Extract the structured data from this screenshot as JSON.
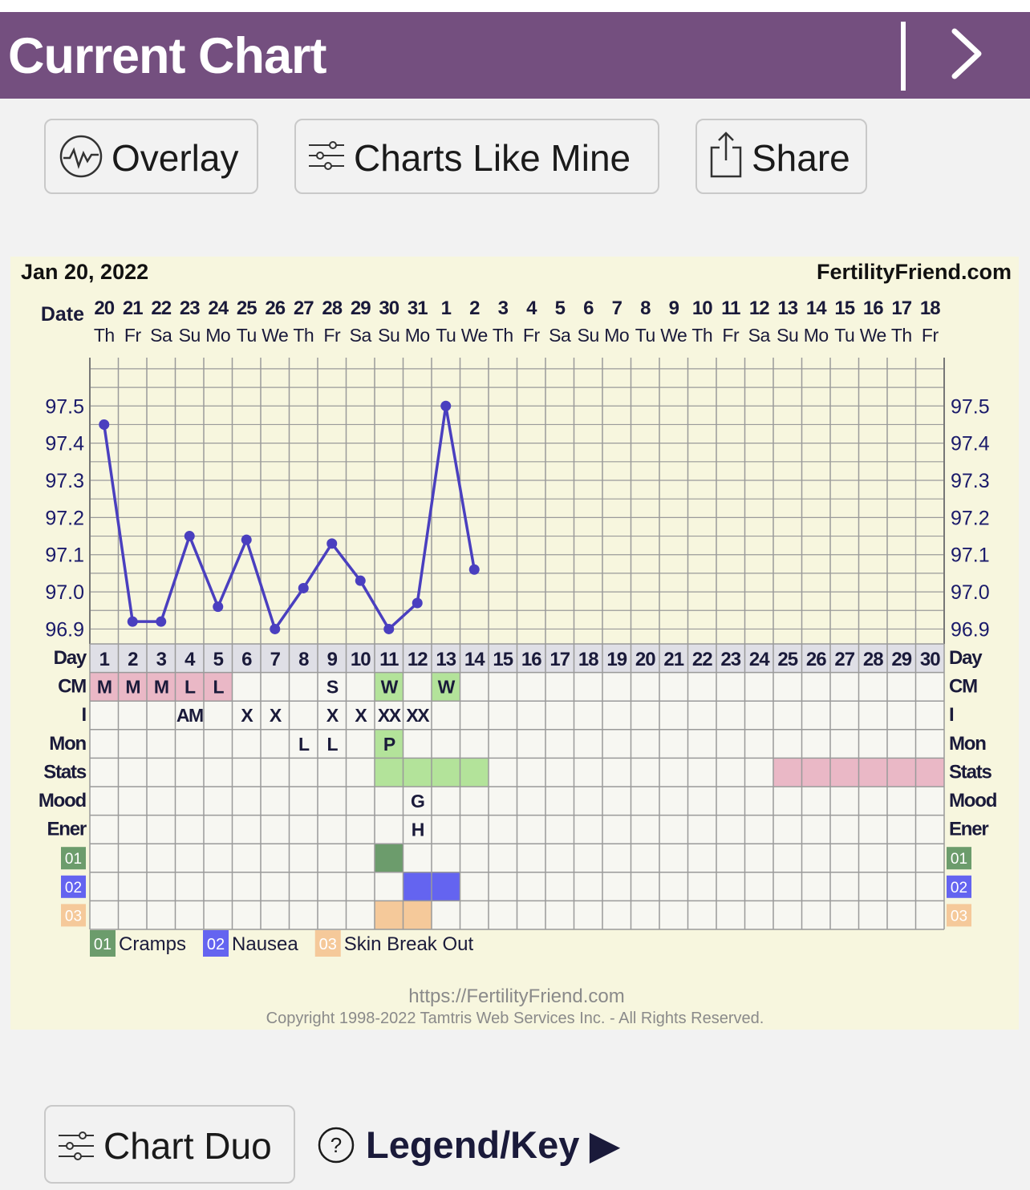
{
  "header": {
    "title": "Current Chart",
    "next_icon": "chevron-right-icon"
  },
  "toolbar": {
    "overlay_label": "Overlay",
    "charts_like_mine_label": "Charts Like Mine",
    "share_label": "Share"
  },
  "chart": {
    "date_title": "Jan 20, 2022",
    "brand": "FertilityFriend.com",
    "row_labels": {
      "date": "Date",
      "day": "Day",
      "cm": "CM",
      "i": "I",
      "mon": "Mon",
      "stats": "Stats",
      "mood": "Mood",
      "ener": "Ener"
    },
    "dates": [
      "20",
      "21",
      "22",
      "23",
      "24",
      "25",
      "26",
      "27",
      "28",
      "29",
      "30",
      "31",
      "1",
      "2",
      "3",
      "4",
      "5",
      "6",
      "7",
      "8",
      "9",
      "10",
      "11",
      "12",
      "13",
      "14",
      "15",
      "16",
      "17",
      "18"
    ],
    "weekdays": [
      "Th",
      "Fr",
      "Sa",
      "Su",
      "Mo",
      "Tu",
      "We",
      "Th",
      "Fr",
      "Sa",
      "Su",
      "Mo",
      "Tu",
      "We",
      "Th",
      "Fr",
      "Sa",
      "Su",
      "Mo",
      "Tu",
      "We",
      "Th",
      "Fr",
      "Sa",
      "Su",
      "Mo",
      "Tu",
      "We",
      "Th",
      "Fr"
    ],
    "days": [
      "1",
      "2",
      "3",
      "4",
      "5",
      "6",
      "7",
      "8",
      "9",
      "10",
      "11",
      "12",
      "13",
      "14",
      "15",
      "16",
      "17",
      "18",
      "19",
      "20",
      "21",
      "22",
      "23",
      "24",
      "25",
      "26",
      "27",
      "28",
      "29",
      "30"
    ],
    "y_ticks": [
      "97.5",
      "97.4",
      "97.3",
      "97.2",
      "97.1",
      "97.0",
      "96.9"
    ],
    "rows": {
      "cm": [
        "M",
        "M",
        "M",
        "L",
        "L",
        "",
        "",
        "",
        "S",
        "",
        "W",
        "",
        "W",
        "",
        "",
        "",
        "",
        "",
        "",
        "",
        "",
        "",
        "",
        "",
        "",
        "",
        "",
        "",
        "",
        ""
      ],
      "i": [
        "",
        "",
        "",
        "AM",
        "",
        "X",
        "X",
        "",
        "X",
        "X",
        "XX",
        "XX",
        "",
        "",
        "",
        "",
        "",
        "",
        "",
        "",
        "",
        "",
        "",
        "",
        "",
        "",
        "",
        "",
        "",
        ""
      ],
      "mon": [
        "",
        "",
        "",
        "",
        "",
        "",
        "",
        "L",
        "L",
        "",
        "P",
        "",
        "",
        "",
        "",
        "",
        "",
        "",
        "",
        "",
        "",
        "",
        "",
        "",
        "",
        "",
        "",
        "",
        "",
        ""
      ],
      "mood": [
        "",
        "",
        "",
        "",
        "",
        "",
        "",
        "",
        "",
        "",
        "",
        "G",
        "",
        "",
        "",
        "",
        "",
        "",
        "",
        "",
        "",
        "",
        "",
        "",
        "",
        "",
        "",
        "",
        "",
        ""
      ],
      "ener": [
        "",
        "",
        "",
        "",
        "",
        "",
        "",
        "",
        "",
        "",
        "",
        "H",
        "",
        "",
        "",
        "",
        "",
        "",
        "",
        "",
        "",
        "",
        "",
        "",
        "",
        "",
        "",
        "",
        "",
        ""
      ]
    },
    "stats_cells": [
      {
        "day": 11,
        "status": "green"
      },
      {
        "day": 12,
        "status": "green"
      },
      {
        "day": 13,
        "status": "green"
      },
      {
        "day": 14,
        "status": "green"
      },
      {
        "day": 25,
        "status": "pink"
      },
      {
        "day": 26,
        "status": "pink"
      },
      {
        "day": 27,
        "status": "pink"
      },
      {
        "day": 28,
        "status": "pink"
      },
      {
        "day": 29,
        "status": "pink"
      },
      {
        "day": 30,
        "status": "pink"
      }
    ],
    "symptoms": [
      {
        "code": "01",
        "name": "Cramps",
        "color": "#6c9c6c",
        "days": [
          11
        ]
      },
      {
        "code": "02",
        "name": "Nausea",
        "color": "#6464f0",
        "days": [
          12,
          13
        ]
      },
      {
        "code": "03",
        "name": "Skin Break Out",
        "color": "#f5c99a",
        "days": [
          11,
          12
        ]
      }
    ],
    "colors": {
      "line": "#4a3fbf",
      "cm_pink": "#eab8c6",
      "cm_green": "#b3e39a",
      "stats_green": "#b3e39a",
      "stats_pink": "#eab8c6",
      "day_row": "#dfdfe6",
      "grid": "#9a9a9a"
    },
    "footer_url": "https://FertilityFriend.com",
    "copyright": "Copyright 1998-2022 Tamtris Web Services Inc. - All Rights Reserved."
  },
  "chart_data": {
    "type": "line",
    "x": [
      1,
      2,
      3,
      4,
      5,
      6,
      7,
      8,
      9,
      10,
      11,
      12,
      13,
      14
    ],
    "series": [
      {
        "values": [
          97.45,
          96.92,
          96.92,
          97.15,
          96.96,
          97.14,
          96.9,
          97.01,
          97.13,
          97.03,
          96.9,
          96.97,
          97.5,
          97.06
        ]
      }
    ],
    "ylim": [
      96.86,
      97.63
    ],
    "xlim": [
      1,
      30
    ],
    "grid": true
  },
  "bottom": {
    "chart_duo_label": "Chart Duo",
    "legend_label": "Legend/Key ▶",
    "help_icon": "question-circle-icon"
  }
}
